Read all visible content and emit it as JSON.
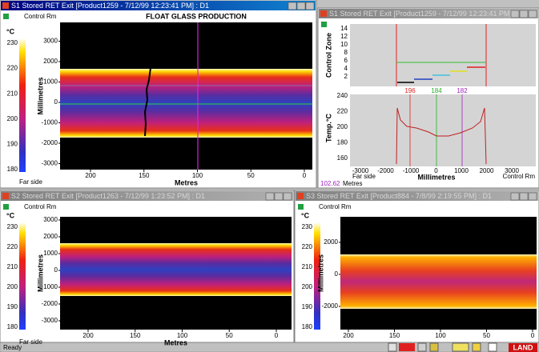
{
  "windows": [
    {
      "title": "S1 Stored RET Exit [Product1259 - 7/12/99 12:23:41 PM] : D1",
      "side_label": "Control Rm",
      "heading": "FLOAT GLASS PRODUCTION",
      "scale_unit": "°C",
      "scale_ticks": [
        230,
        220,
        210,
        200,
        190,
        180
      ],
      "y_label": "Millimetres",
      "y_ticks": [
        3000,
        2000,
        1000,
        0,
        -1000,
        -2000,
        -3000
      ],
      "x_label": "Metres",
      "x_ticks": [
        200,
        150,
        100,
        50,
        0
      ],
      "far_label": "Far side"
    },
    {
      "title": "S1 Stored RET Exit [Product1259 - 7/12/99 12:23:41 PM]...",
      "zone_label": "Control Zone",
      "zone_ticks": [
        14,
        12,
        10,
        8,
        6,
        4,
        2
      ],
      "temp_label": "Temp.°C",
      "temp_ticks": [
        240,
        220,
        200,
        180,
        160
      ],
      "markers": [
        196,
        184,
        182
      ],
      "x_ticks": [
        -3000,
        -2000,
        -1000,
        0,
        1000,
        2000,
        3000
      ],
      "far_label": "Far side",
      "x_label": "Millimetres",
      "near_label": "Control Rm",
      "position": "102.62",
      "position_unit": "Metres"
    },
    {
      "title": "S2 Stored RET Exit [Product1263 - 7/12/99 1:23:52 PM] : D1",
      "side_label": "Control Rm",
      "scale_unit": "°C",
      "scale_ticks": [
        230,
        220,
        210,
        200,
        190,
        180
      ],
      "y_label": "Millimetres",
      "y_ticks": [
        3000,
        2000,
        1000,
        0,
        -1000,
        -2000,
        -3000
      ],
      "x_label": "Metres",
      "x_ticks": [
        200,
        150,
        100,
        50,
        0
      ],
      "far_label": "Far side"
    },
    {
      "title": "S3 Stored RET Exit [Product884 - 7/8/99 2:19:55 PM] : D1",
      "side_label": "Control Rm",
      "scale_unit": "°C",
      "scale_ticks": [
        230,
        220,
        210,
        200,
        190,
        180
      ],
      "y_label": "Millimetres",
      "y_ticks": [
        2000,
        0,
        -2000
      ],
      "x_ticks": [
        200,
        150,
        100,
        50,
        0
      ]
    }
  ],
  "status": "Ready",
  "logo": "LAND"
}
